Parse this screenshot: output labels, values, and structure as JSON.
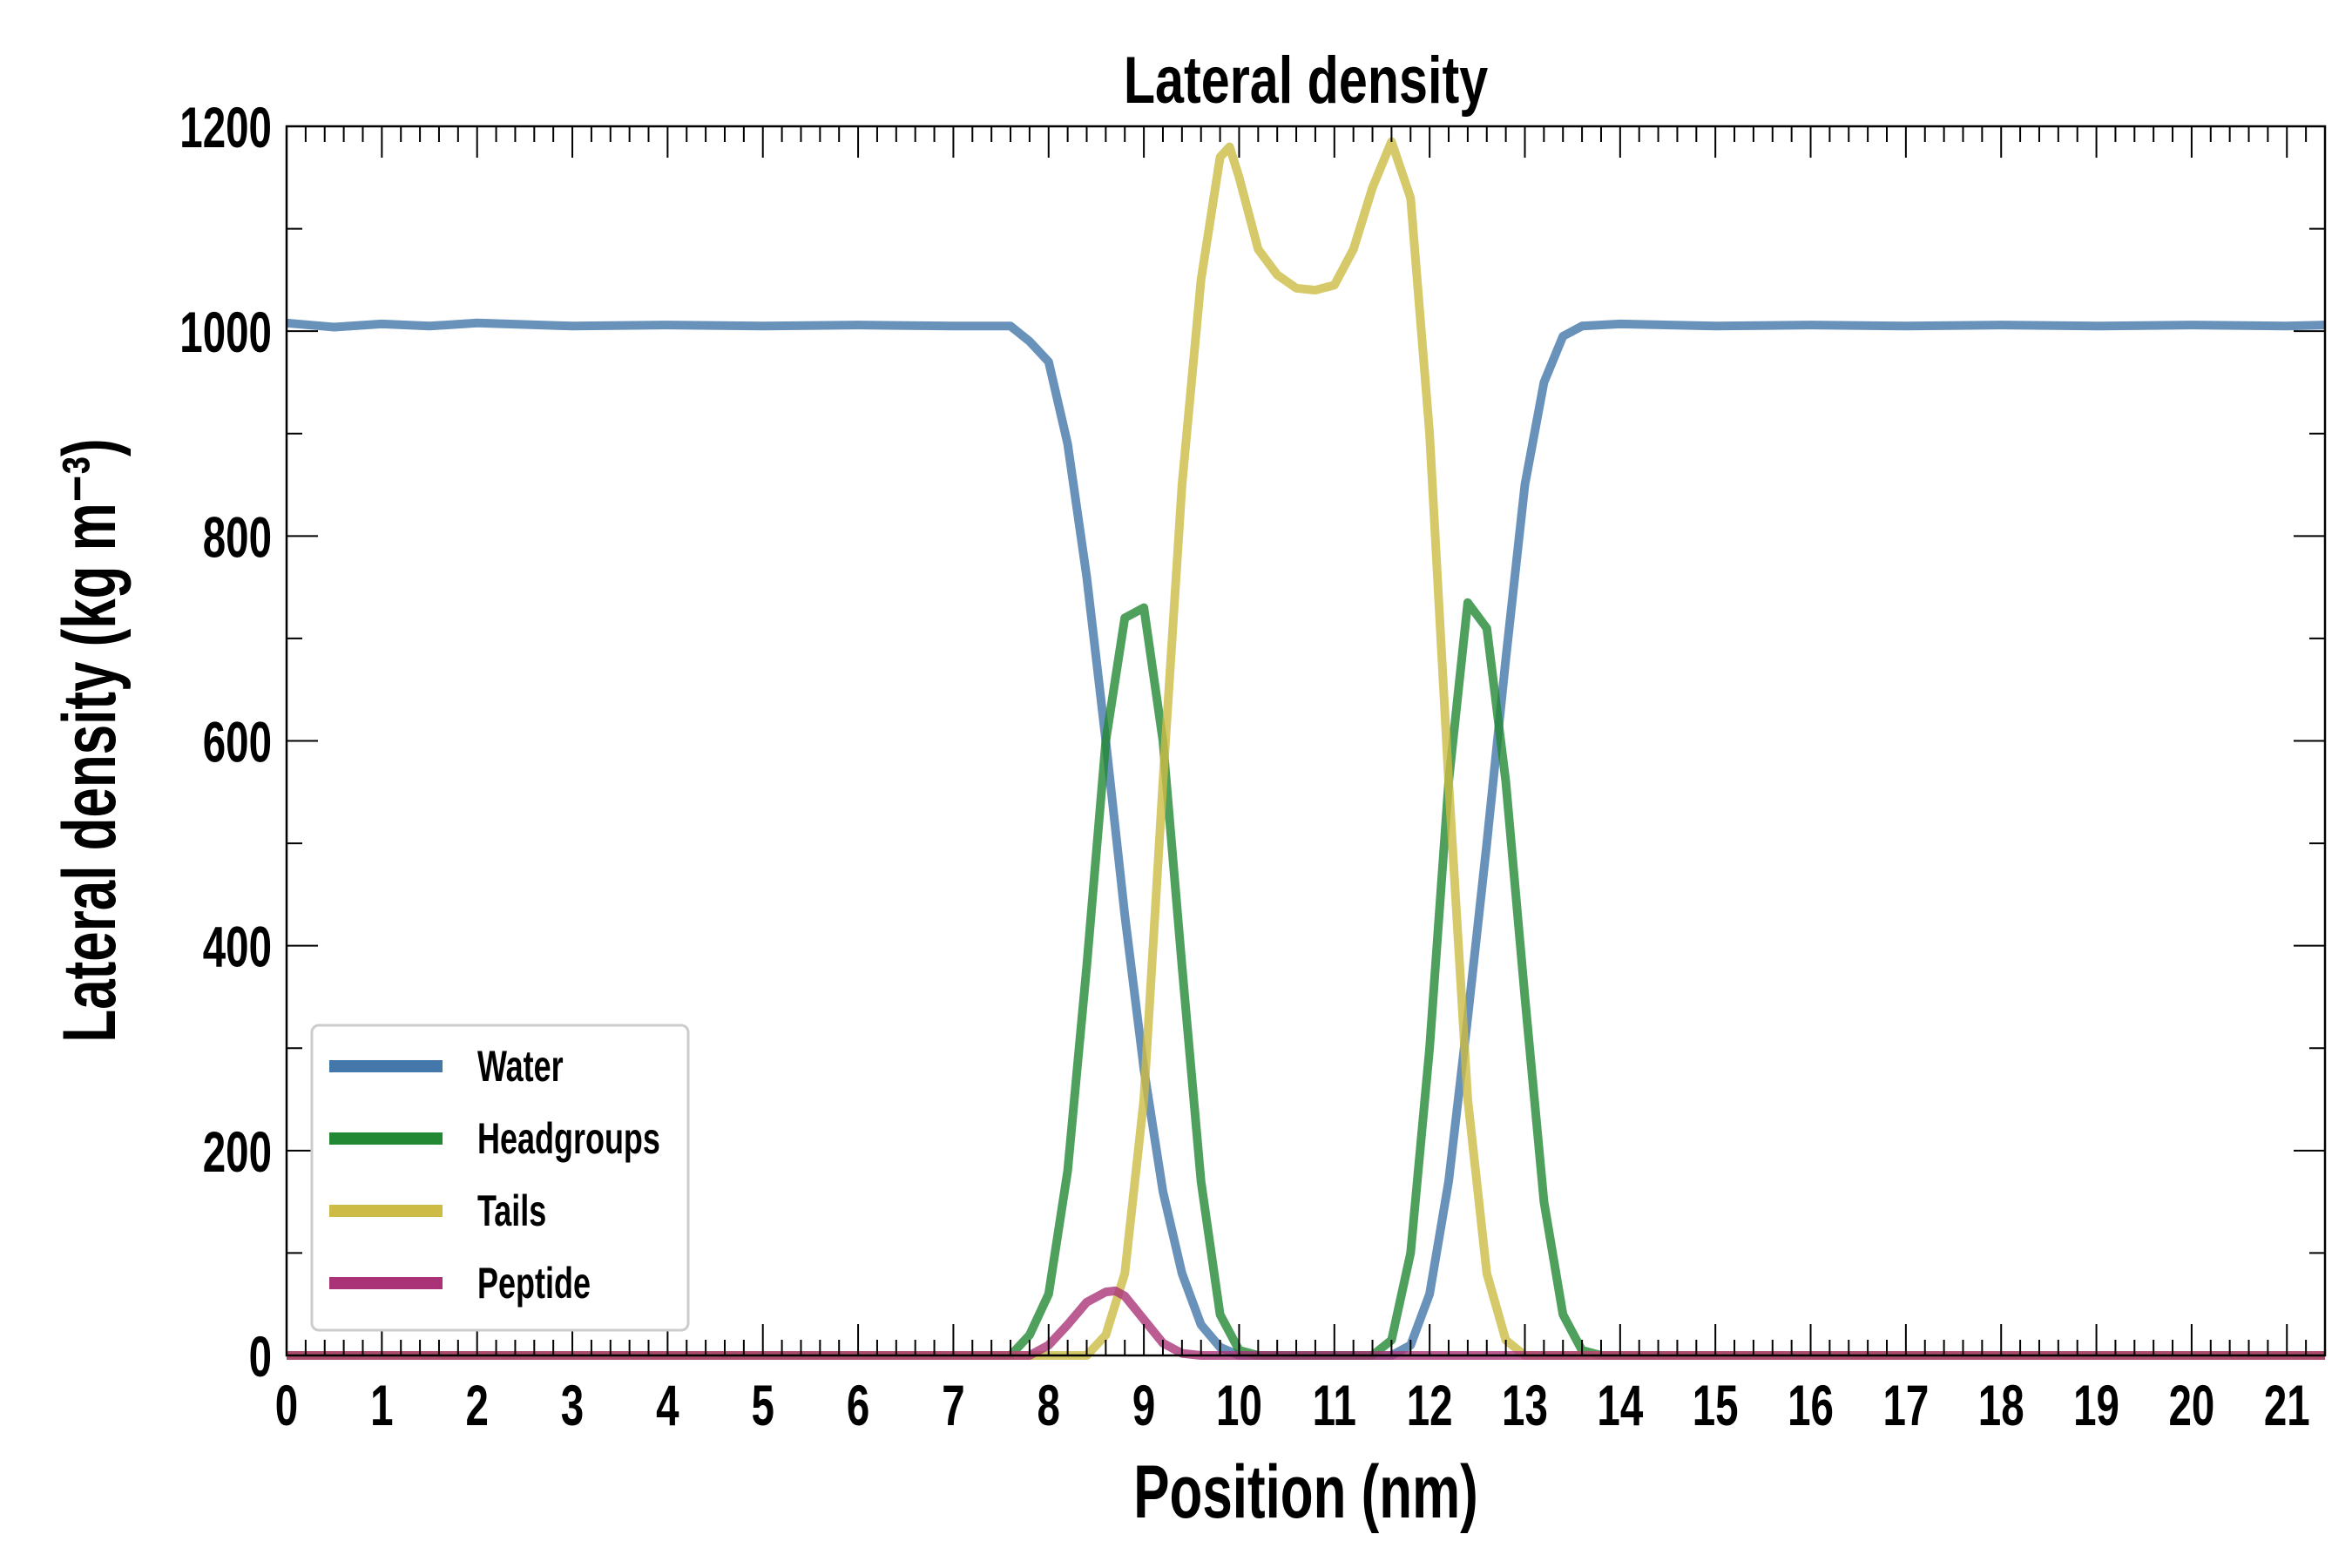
{
  "chart_data": {
    "type": "line",
    "title": "Lateral density",
    "xlabel": "Position (nm)",
    "ylabel": "Lateral density (kg m⁻³)",
    "xlim": [
      0,
      21.4
    ],
    "ylim": [
      0,
      1200
    ],
    "xticks": [
      0,
      1,
      2,
      3,
      4,
      5,
      6,
      7,
      8,
      9,
      10,
      11,
      12,
      13,
      14,
      15,
      16,
      17,
      18,
      19,
      20,
      21
    ],
    "yticks": [
      0,
      200,
      400,
      600,
      800,
      1000,
      1200
    ],
    "grid": false,
    "legend_position": "lower-left",
    "series": [
      {
        "name": "Water",
        "color": "#4477aa",
        "x": [
          0,
          0.5,
          1,
          1.5,
          2,
          3,
          4,
          5,
          6,
          7,
          7.6,
          7.8,
          8.0,
          8.2,
          8.4,
          8.6,
          8.8,
          9.0,
          9.2,
          9.4,
          9.6,
          9.8,
          10.0,
          11.6,
          11.8,
          12.0,
          12.2,
          12.4,
          12.6,
          12.8,
          13.0,
          13.2,
          13.4,
          13.6,
          14,
          15,
          16,
          17,
          18,
          19,
          20,
          21,
          21.4
        ],
        "y": [
          1008,
          1004,
          1007,
          1005,
          1008,
          1005,
          1006,
          1005,
          1006,
          1005,
          1005,
          990,
          970,
          890,
          760,
          600,
          430,
          280,
          160,
          80,
          30,
          8,
          0,
          0,
          10,
          60,
          170,
          330,
          500,
          680,
          850,
          950,
          995,
          1005,
          1007,
          1005,
          1006,
          1005,
          1006,
          1005,
          1006,
          1005,
          1006
        ]
      },
      {
        "name": "Headgroups",
        "color": "#228833",
        "x": [
          0,
          7.6,
          7.8,
          8.0,
          8.2,
          8.4,
          8.6,
          8.8,
          9.0,
          9.2,
          9.4,
          9.6,
          9.8,
          10.0,
          10.2,
          11.4,
          11.6,
          11.8,
          12.0,
          12.2,
          12.4,
          12.6,
          12.8,
          13.0,
          13.2,
          13.4,
          13.6,
          13.8,
          21.4
        ],
        "y": [
          0,
          0,
          20,
          60,
          180,
          380,
          600,
          720,
          730,
          600,
          380,
          170,
          40,
          5,
          0,
          0,
          15,
          100,
          300,
          560,
          735,
          710,
          560,
          350,
          150,
          40,
          5,
          0,
          0
        ]
      },
      {
        "name": "Tails",
        "color": "#ccbb44",
        "x": [
          0,
          8.4,
          8.6,
          8.8,
          9.0,
          9.2,
          9.4,
          9.6,
          9.8,
          9.9,
          10.0,
          10.2,
          10.4,
          10.6,
          10.8,
          11.0,
          11.2,
          11.4,
          11.6,
          11.8,
          12.0,
          12.2,
          12.4,
          12.6,
          12.8,
          13.0,
          21.4
        ],
        "y": [
          0,
          0,
          20,
          80,
          250,
          560,
          850,
          1050,
          1170,
          1180,
          1150,
          1080,
          1055,
          1042,
          1040,
          1045,
          1080,
          1140,
          1185,
          1130,
          900,
          560,
          250,
          80,
          15,
          0,
          0
        ]
      },
      {
        "name": "Peptide",
        "color": "#aa3377",
        "x": [
          0,
          7.8,
          8.0,
          8.2,
          8.4,
          8.6,
          8.7,
          8.8,
          9.0,
          9.2,
          9.4,
          9.6,
          21.4
        ],
        "y": [
          0,
          0,
          10,
          30,
          52,
          62,
          63,
          58,
          35,
          12,
          2,
          0,
          0
        ]
      }
    ]
  }
}
